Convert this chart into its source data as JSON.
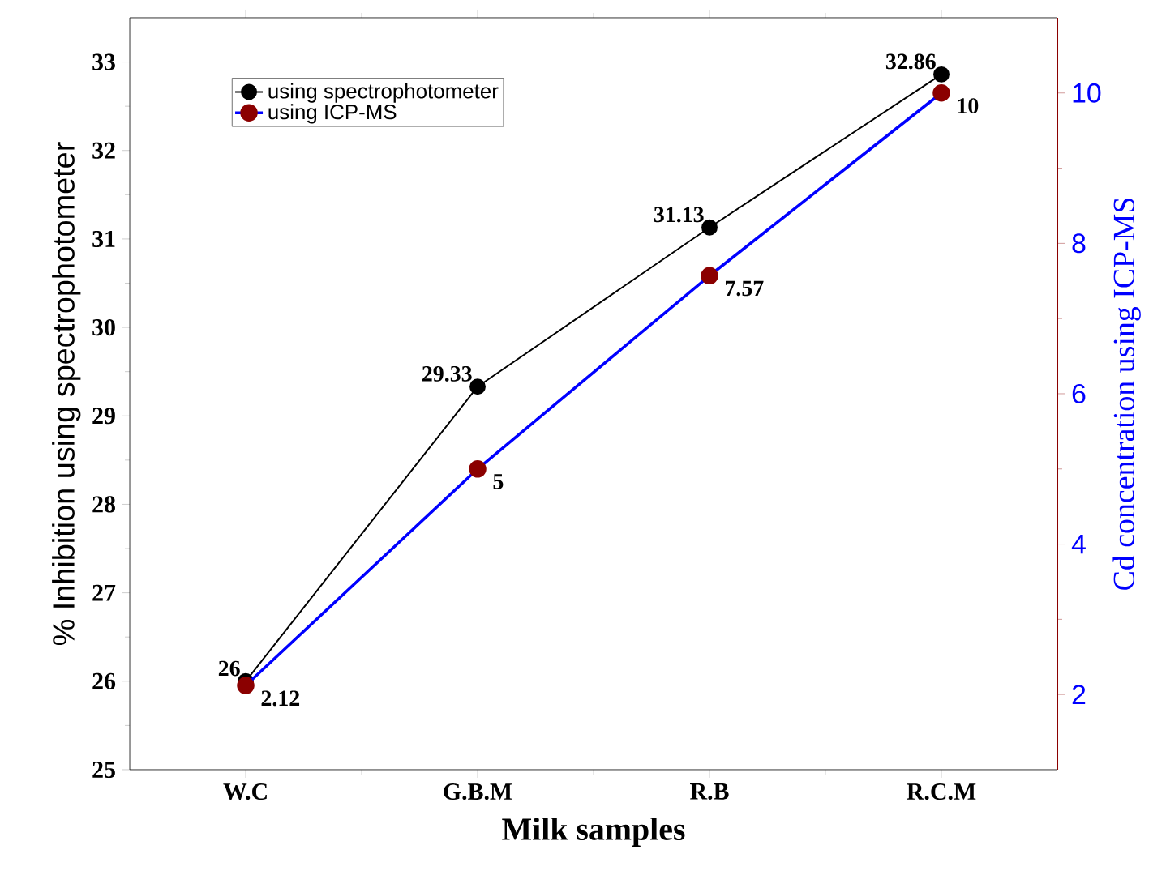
{
  "chart_data": {
    "type": "line",
    "xlabel": "Milk samples",
    "ylabel": "% Inhibition using spectrophotometer",
    "y2label": "Cd concentration using ICP-MS",
    "categories": [
      "W.C",
      "G.B.M",
      "R.B",
      "R.C.M"
    ],
    "series": [
      {
        "name": "using spectrophotometer",
        "color": "#000000",
        "values": [
          26,
          29.33,
          31.13,
          32.86
        ]
      },
      {
        "name": "using ICP-MS",
        "color": "#0000ff",
        "axis": "y2",
        "values": [
          2.12,
          5,
          7.57,
          10
        ]
      }
    ],
    "ylim": [
      25,
      33.5
    ],
    "yticks": [
      25,
      26,
      27,
      28,
      29,
      30,
      31,
      32,
      33
    ],
    "y2lim": [
      1,
      11
    ],
    "y2ticks": [
      2,
      4,
      6,
      8,
      10
    ],
    "marker": "circle",
    "data_labels": true,
    "legend": "top left"
  }
}
